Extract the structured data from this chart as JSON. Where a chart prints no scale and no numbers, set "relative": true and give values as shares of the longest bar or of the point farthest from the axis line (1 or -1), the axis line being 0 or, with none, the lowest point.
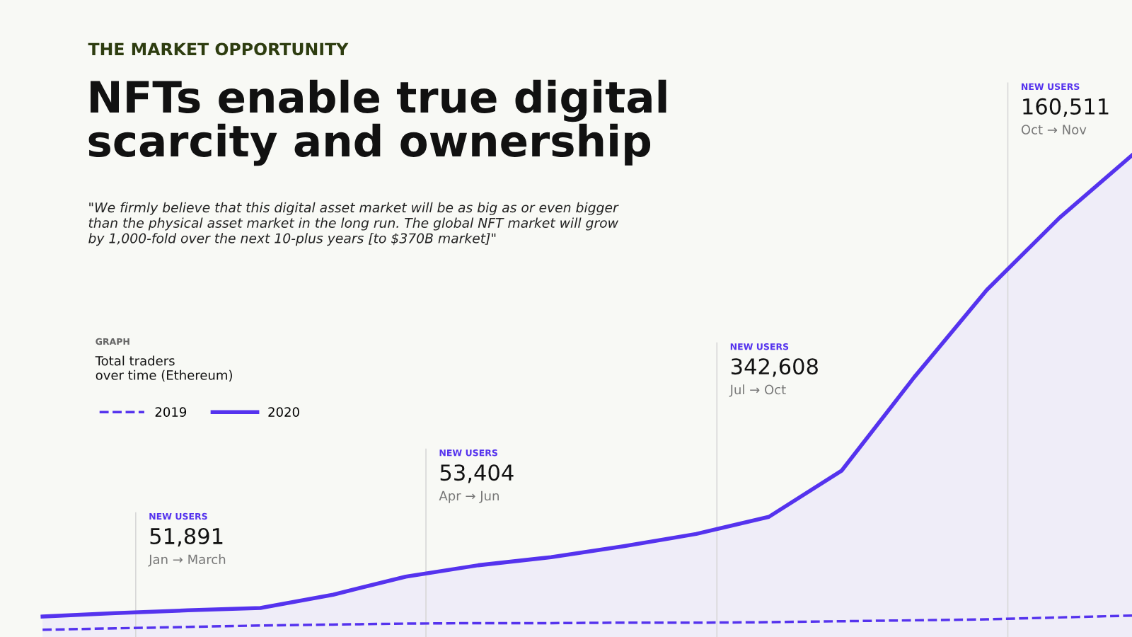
{
  "chart_data": {
    "type": "area",
    "relative": true,
    "title": "NFTs enable true digital\nscarcity and ownership",
    "subtitle": "THE MARKET OPPORTUNITY",
    "annotations": [
      "\"We firmly believe that this digital asset market will be as big as or even bigger\nthan the physical asset market in the long run. The global NFT market will grow\nby 1,000-fold over the next 10-plus years [to $370B market]\"",
      "GRAPH",
      "Total traders\nover time (Ethereum)",
      "NEW USERS",
      "51,891",
      "Jan → March",
      "NEW USERS",
      "53,404",
      "Apr → Jun",
      "NEW USERS",
      "342,608",
      "Jul → Oct",
      "NEW USERS",
      "160,511",
      "Oct → Nov"
    ],
    "categories": [
      null,
      null,
      null,
      null,
      null,
      null,
      null,
      null,
      null,
      null,
      null,
      null,
      null,
      null,
      null,
      null
    ],
    "series": [
      {
        "name": "2019",
        "type": "line",
        "line_style": "dashed",
        "color": "#5533ee",
        "values": [
          0,
          0.003,
          0.006,
          0.009,
          0.011,
          0.013,
          0.014,
          0.014,
          0.015,
          0.015,
          0.016,
          0.018,
          0.02,
          0.022,
          0.026,
          0.03
        ]
      },
      {
        "name": "2020",
        "line_style": "solid",
        "color": "#5533ee",
        "values": [
          0.028,
          0.035,
          0.041,
          0.046,
          0.074,
          0.112,
          0.136,
          0.153,
          0.176,
          0.202,
          0.238,
          0.335,
          0.532,
          0.716,
          0.868,
          1
        ]
      }
    ],
    "legend": "left",
    "marker": "none"
  }
}
